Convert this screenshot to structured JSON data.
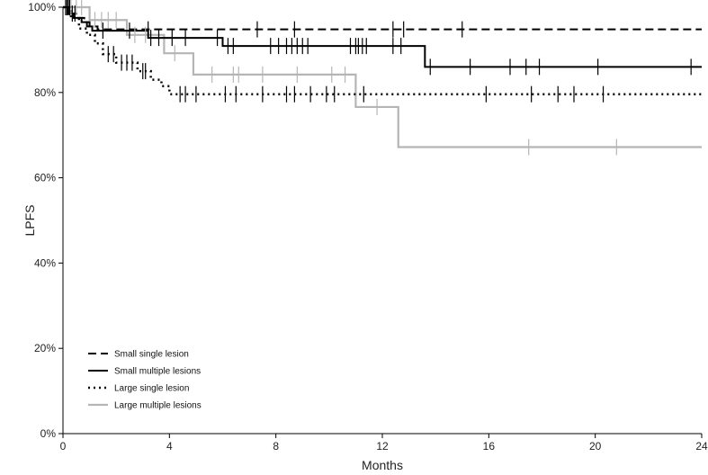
{
  "chart_data": {
    "type": "line",
    "subtype": "kaplan-meier-step",
    "title": "",
    "xlabel": "Months",
    "ylabel": "LPFS",
    "xlim": [
      0,
      24
    ],
    "ylim": [
      0,
      100
    ],
    "x_ticks": [
      0,
      4,
      8,
      12,
      16,
      20,
      24
    ],
    "x_tick_labels": [
      "0",
      "4",
      "8",
      "12",
      "16",
      "20",
      "24"
    ],
    "y_ticks": [
      0,
      20,
      40,
      60,
      80,
      100
    ],
    "y_tick_labels": [
      "0%",
      "20%",
      "40%",
      "60%",
      "80%",
      "100%"
    ],
    "grid": false,
    "legend_position": "bottom-left",
    "series": [
      {
        "name": "Small single lesion",
        "line_style": "dashed",
        "color": "#000000",
        "steps": [
          [
            0,
            100
          ],
          [
            0.3,
            98.5
          ],
          [
            0.5,
            97.5
          ],
          [
            0.8,
            96.5
          ],
          [
            1.0,
            95.5
          ],
          [
            1.3,
            94.8
          ],
          [
            24,
            94.8
          ]
        ],
        "censors": [
          [
            0.1,
            100
          ],
          [
            0.25,
            100
          ],
          [
            0.45,
            98.5
          ],
          [
            3.2,
            94.8
          ],
          [
            7.3,
            94.8
          ],
          [
            8.7,
            94.8
          ],
          [
            12.4,
            94.8
          ],
          [
            12.8,
            94.8
          ],
          [
            15.0,
            94.8
          ]
        ]
      },
      {
        "name": "Small multiple lesions",
        "line_style": "solid",
        "color": "#000000",
        "steps": [
          [
            0,
            100
          ],
          [
            0.2,
            98.5
          ],
          [
            0.4,
            97.5
          ],
          [
            0.7,
            96.5
          ],
          [
            0.9,
            95.5
          ],
          [
            1.1,
            94.5
          ],
          [
            3.2,
            92.8
          ],
          [
            6.0,
            90.9
          ],
          [
            13.6,
            86.0
          ],
          [
            24,
            86.0
          ]
        ],
        "censors": [
          [
            0.15,
            100
          ],
          [
            0.35,
            98.5
          ],
          [
            1.5,
            94.5
          ],
          [
            2.5,
            94.5
          ],
          [
            3.3,
            92.8
          ],
          [
            3.6,
            92.8
          ],
          [
            4.1,
            92.8
          ],
          [
            4.6,
            92.8
          ],
          [
            5.8,
            92.8
          ],
          [
            6.2,
            90.9
          ],
          [
            6.4,
            90.9
          ],
          [
            7.8,
            90.9
          ],
          [
            8.1,
            90.9
          ],
          [
            8.4,
            90.9
          ],
          [
            8.6,
            90.9
          ],
          [
            8.8,
            90.9
          ],
          [
            9.0,
            90.9
          ],
          [
            9.2,
            90.9
          ],
          [
            10.8,
            90.9
          ],
          [
            11.0,
            90.9
          ],
          [
            11.1,
            90.9
          ],
          [
            11.25,
            90.9
          ],
          [
            11.4,
            90.9
          ],
          [
            12.4,
            90.9
          ],
          [
            12.7,
            90.9
          ],
          [
            13.8,
            86.0
          ],
          [
            15.3,
            86.0
          ],
          [
            16.8,
            86.0
          ],
          [
            17.4,
            86.0
          ],
          [
            17.9,
            86.0
          ],
          [
            20.1,
            86.0
          ],
          [
            23.6,
            86.0
          ]
        ]
      },
      {
        "name": "Large single lesion",
        "line_style": "dotted",
        "color": "#000000",
        "steps": [
          [
            0,
            100
          ],
          [
            0.3,
            97.5
          ],
          [
            0.6,
            95.0
          ],
          [
            0.9,
            93.5
          ],
          [
            1.2,
            91.5
          ],
          [
            1.5,
            89.0
          ],
          [
            2.0,
            87.0
          ],
          [
            2.8,
            85.0
          ],
          [
            3.3,
            83.0
          ],
          [
            3.7,
            81.5
          ],
          [
            4.0,
            79.6
          ],
          [
            24,
            79.6
          ]
        ],
        "censors": [
          [
            0.2,
            100
          ],
          [
            1.7,
            89.0
          ],
          [
            1.9,
            89.0
          ],
          [
            2.2,
            87.0
          ],
          [
            2.4,
            87.0
          ],
          [
            2.6,
            87.0
          ],
          [
            3.0,
            85.0
          ],
          [
            3.1,
            85.0
          ],
          [
            4.4,
            79.6
          ],
          [
            4.6,
            79.6
          ],
          [
            5.0,
            79.6
          ],
          [
            6.1,
            79.6
          ],
          [
            6.5,
            79.6
          ],
          [
            7.5,
            79.6
          ],
          [
            8.4,
            79.6
          ],
          [
            8.7,
            79.6
          ],
          [
            9.3,
            79.6
          ],
          [
            9.9,
            79.6
          ],
          [
            10.2,
            79.6
          ],
          [
            11.3,
            79.6
          ],
          [
            15.9,
            79.6
          ],
          [
            17.6,
            79.6
          ],
          [
            18.6,
            79.6
          ],
          [
            19.2,
            79.6
          ],
          [
            20.3,
            79.6
          ]
        ]
      },
      {
        "name": "Large multiple lesions",
        "line_style": "solid",
        "color": "#b5b5b5",
        "steps": [
          [
            0,
            100
          ],
          [
            1.0,
            97.0
          ],
          [
            2.4,
            93.5
          ],
          [
            3.8,
            89.2
          ],
          [
            4.9,
            84.2
          ],
          [
            11.0,
            76.6
          ],
          [
            12.6,
            67.2
          ],
          [
            24,
            67.2
          ]
        ],
        "censors": [
          [
            0.3,
            100
          ],
          [
            0.5,
            100
          ],
          [
            0.7,
            100
          ],
          [
            1.2,
            97.0
          ],
          [
            1.45,
            97.0
          ],
          [
            1.7,
            97.0
          ],
          [
            2.0,
            97.0
          ],
          [
            2.7,
            93.5
          ],
          [
            3.1,
            93.5
          ],
          [
            4.2,
            89.2
          ],
          [
            5.6,
            84.2
          ],
          [
            6.4,
            84.2
          ],
          [
            6.6,
            84.2
          ],
          [
            7.5,
            84.2
          ],
          [
            8.8,
            84.2
          ],
          [
            10.1,
            84.2
          ],
          [
            10.6,
            84.2
          ],
          [
            11.8,
            76.6
          ],
          [
            17.5,
            67.2
          ],
          [
            20.8,
            67.2
          ]
        ]
      }
    ]
  }
}
